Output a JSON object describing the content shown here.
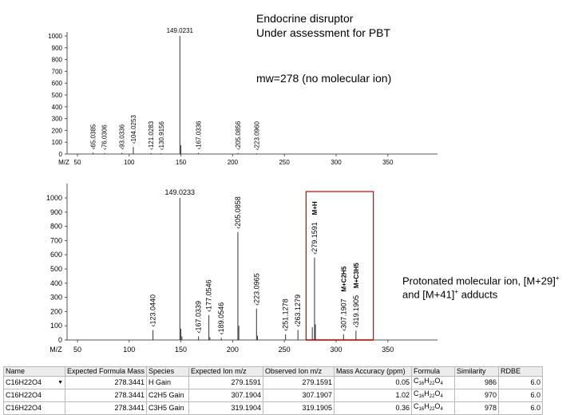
{
  "annotations": {
    "line1": "Endocrine disruptor",
    "line2": "Under assessment for PBT",
    "line3": "mw=278 (no molecular ion)",
    "line4": "Protonated molecular ion, [M+29]",
    "line4_sup": "+",
    "line5_a": "and [M+41]",
    "line5_sup": "+",
    "line5_b": " adducts"
  },
  "chart_data": [
    {
      "type": "bar",
      "name": "top-spectrum",
      "xlabel": "M/Z",
      "x_ticks": [
        "50",
        "100",
        "150",
        "200",
        "250",
        "300",
        "350"
      ],
      "x_tick_values": [
        50,
        100,
        150,
        200,
        250,
        300,
        350
      ],
      "y_ticks": [
        "0",
        "100",
        "200",
        "300",
        "400",
        "500",
        "600",
        "700",
        "800",
        "900",
        "1000"
      ],
      "xlim": [
        40,
        398
      ],
      "ylim": [
        0,
        1000
      ],
      "peaks": [
        {
          "mz": 65.0385,
          "intensity": 12,
          "label": "65.0385"
        },
        {
          "mz": 76.0306,
          "intensity": 8,
          "label": "76.0306"
        },
        {
          "mz": 93.0336,
          "intensity": 10,
          "label": "93.0336"
        },
        {
          "mz": 104.0253,
          "intensity": 60,
          "label": "104.0253"
        },
        {
          "mz": 121.0283,
          "intensity": 8,
          "label": "121.0283"
        },
        {
          "mz": 130.9156,
          "intensity": 6,
          "label": "130.9156"
        },
        {
          "mz": 149.0231,
          "intensity": 1000,
          "label": "149.0231"
        },
        {
          "mz": 150.0,
          "intensity": 75,
          "label": ""
        },
        {
          "mz": 167.0336,
          "intensity": 10,
          "label": "167.0336"
        },
        {
          "mz": 205.0856,
          "intensity": 8,
          "label": "205.0856"
        },
        {
          "mz": 223.096,
          "intensity": 6,
          "label": "223.0960"
        }
      ]
    },
    {
      "type": "bar",
      "name": "bottom-spectrum",
      "xlabel": "M/Z",
      "x_ticks": [
        "50",
        "100",
        "150",
        "200",
        "250",
        "300",
        "350"
      ],
      "x_tick_values": [
        50,
        100,
        150,
        200,
        250,
        300,
        350
      ],
      "y_ticks": [
        "0",
        "100",
        "200",
        "300",
        "400",
        "500",
        "600",
        "700",
        "800",
        "900",
        "1000"
      ],
      "xlim": [
        40,
        398
      ],
      "ylim": [
        0,
        1000
      ],
      "peaks": [
        {
          "mz": 123.044,
          "intensity": 70,
          "label": "123.0440"
        },
        {
          "mz": 149.0233,
          "intensity": 1000,
          "label": "149.0233"
        },
        {
          "mz": 150.0,
          "intensity": 80,
          "label": ""
        },
        {
          "mz": 151.0,
          "intensity": 25,
          "label": ""
        },
        {
          "mz": 167.0339,
          "intensity": 25,
          "label": "167.0339"
        },
        {
          "mz": 177.0546,
          "intensity": 175,
          "label": "177.0546"
        },
        {
          "mz": 178.0,
          "intensity": 20,
          "label": ""
        },
        {
          "mz": 189.0546,
          "intensity": 15,
          "label": "189.0546"
        },
        {
          "mz": 205.0858,
          "intensity": 760,
          "label": "205.0858"
        },
        {
          "mz": 206.0,
          "intensity": 100,
          "label": ""
        },
        {
          "mz": 223.0965,
          "intensity": 220,
          "label": "223.0965"
        },
        {
          "mz": 224.0,
          "intensity": 30,
          "label": ""
        },
        {
          "mz": 251.1278,
          "intensity": 40,
          "label": "251.1278"
        },
        {
          "mz": 263.1279,
          "intensity": 70,
          "label": "263.1279"
        },
        {
          "mz": 279.1591,
          "intensity": 580,
          "label": "279.1591",
          "tag": "M+H"
        },
        {
          "mz": 280.0,
          "intensity": 110,
          "label": ""
        },
        {
          "mz": 277.0,
          "intensity": 90,
          "label": ""
        },
        {
          "mz": 307.1907,
          "intensity": 40,
          "label": "307.1907",
          "tag": "M+C2H5"
        },
        {
          "mz": 319.1905,
          "intensity": 65,
          "label": "319.1905",
          "tag": "M+C3H5"
        }
      ],
      "highlight_range": [
        271,
        336
      ]
    }
  ],
  "table": {
    "headers": [
      "Name",
      "Expected Formula Mass",
      "Species",
      "Expected Ion m/z",
      "Observed Ion m/z",
      "Mass Accuracy (ppm)",
      "Formula",
      "Similarity",
      "RDBE"
    ],
    "rows": [
      {
        "name": "C16H22O4",
        "formula_mass": "278.3441",
        "species": "H Gain",
        "expected": "279.1591",
        "observed": "279.1591",
        "accuracy": "0.05",
        "formula_c": "C",
        "formula_c_n": "16",
        "formula_h": "H",
        "formula_h_n": "22",
        "formula_o": "O",
        "formula_o_n": "4",
        "similarity": "986",
        "rdbe": "6.0"
      },
      {
        "name": "C16H22O4",
        "formula_mass": "278.3441",
        "species": "C2H5 Gain",
        "expected": "307.1904",
        "observed": "307.1907",
        "accuracy": "1.02",
        "formula_c": "C",
        "formula_c_n": "16",
        "formula_h": "H",
        "formula_h_n": "22",
        "formula_o": "O",
        "formula_o_n": "4",
        "similarity": "970",
        "rdbe": "6.0"
      },
      {
        "name": "C16H22O4",
        "formula_mass": "278.3441",
        "species": "C3H5 Gain",
        "expected": "319.1904",
        "observed": "319.1905",
        "accuracy": "0.36",
        "formula_c": "C",
        "formula_c_n": "16",
        "formula_h": "H",
        "formula_h_n": "22",
        "formula_o": "O",
        "formula_o_n": "4",
        "similarity": "978",
        "rdbe": "6.0"
      }
    ]
  },
  "colors": {
    "highlight_box": "#cc0000",
    "grid_border": "#b9b9b9"
  }
}
